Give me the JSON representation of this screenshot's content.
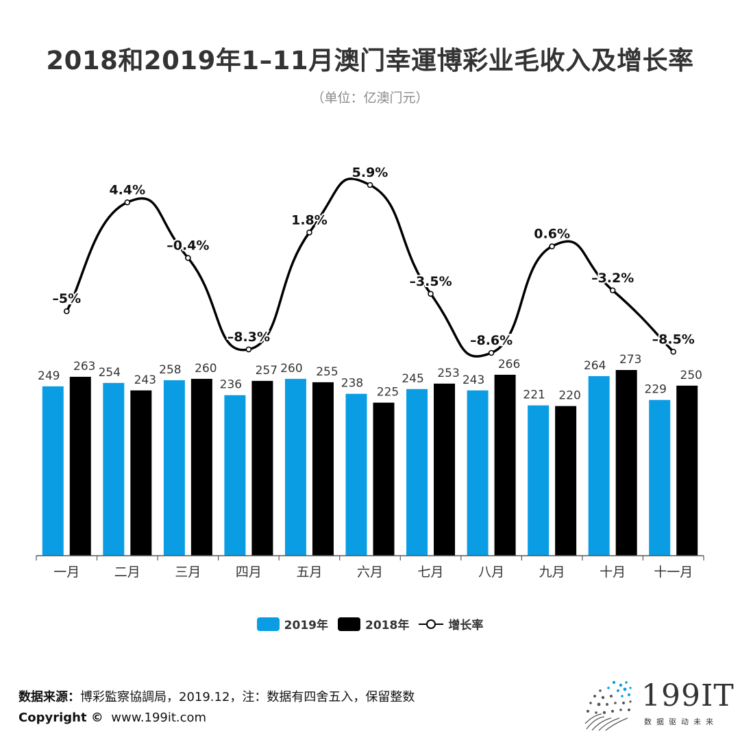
{
  "title": "2018和2019年1–11月澳门幸運博彩业毛收入及增长率",
  "subtitle": "（单位：亿澳门元）",
  "colors": {
    "series_2019": "#0a9de4",
    "series_2018": "#000000",
    "growth_line": "#000000",
    "axis": "#555555"
  },
  "chart_data": {
    "type": "bar",
    "categories": [
      "一月",
      "二月",
      "三月",
      "四月",
      "五月",
      "六月",
      "七月",
      "八月",
      "九月",
      "十月",
      "十一月"
    ],
    "series": [
      {
        "name": "2019年",
        "values": [
          249,
          254,
          258,
          236,
          260,
          238,
          245,
          243,
          221,
          264,
          229
        ]
      },
      {
        "name": "2018年",
        "values": [
          263,
          243,
          260,
          257,
          255,
          225,
          253,
          266,
          220,
          273,
          250
        ]
      }
    ],
    "line_series": {
      "name": "增长率",
      "type": "line",
      "values": [
        -5,
        4.4,
        -0.4,
        -8.3,
        1.8,
        5.9,
        -3.5,
        -8.6,
        0.6,
        -3.2,
        -8.5
      ],
      "labels": [
        "–5%",
        "4.4%",
        "–0.4%",
        "–8.3%",
        "1.8%",
        "5.9%",
        "–3.5%",
        "–8.6%",
        "0.6%",
        "–3.2%",
        "–8.5%"
      ]
    },
    "ylim": [
      0,
      300
    ],
    "grid": false,
    "legend_position": "bottom-center"
  },
  "legend": {
    "items": [
      {
        "label": "2019年"
      },
      {
        "label": "2018年"
      },
      {
        "label": "增长率"
      }
    ]
  },
  "footer": {
    "source_label": "数据来源：",
    "source_text": "博彩監察協調局，2019.12，注：数据有四舍五入，保留整数",
    "copyright_label": "Copyright ©",
    "copyright_url": "www.199it.com"
  },
  "logo": {
    "text": "199IT",
    "tagline": "数据驱动未来"
  }
}
